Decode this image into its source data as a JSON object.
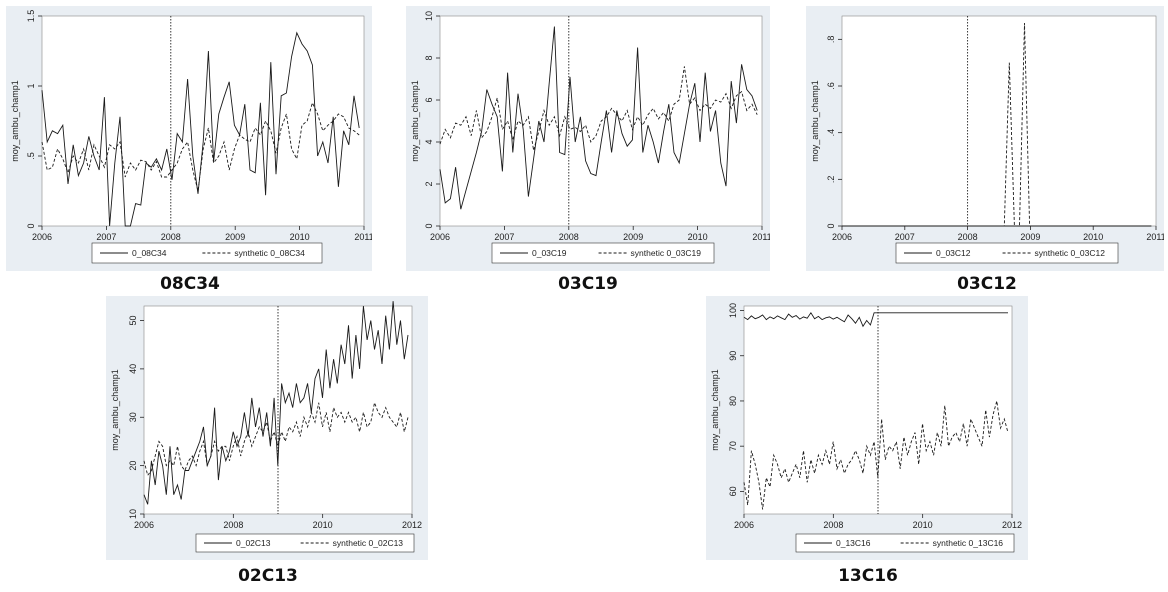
{
  "colors": {
    "panel_bg": "#e9eef3",
    "plot_bg": "#ffffff",
    "line": "#1a1a1a"
  },
  "panels": [
    {
      "caption": "08C34"
    },
    {
      "caption": "03C19"
    },
    {
      "caption": "03C12"
    },
    {
      "caption": "02C13"
    },
    {
      "caption": "13C16"
    }
  ],
  "chart_data": [
    {
      "type": "line",
      "ylabel": "moy_ambu_champ1",
      "xlim": [
        2006,
        2011
      ],
      "ylim": [
        0,
        1.5
      ],
      "xticks": [
        2006,
        2007,
        2008,
        2009,
        2010,
        2011
      ],
      "yticks": [
        0,
        0.5,
        1,
        1.5
      ],
      "ytick_labels": [
        "0",
        ".5",
        "1",
        "1.5"
      ],
      "vline": 2008,
      "series": [
        {
          "name": "0_08C34",
          "style": "solid",
          "values": [
            0.97,
            0.6,
            0.68,
            0.66,
            0.72,
            0.3,
            0.58,
            0.36,
            0.45,
            0.64,
            0.5,
            0.4,
            0.92,
            0.0,
            0.45,
            0.78,
            0.0,
            0.0,
            0.16,
            0.15,
            0.45,
            0.42,
            0.48,
            0.4,
            0.55,
            0.33,
            0.66,
            0.6,
            1.05,
            0.5,
            0.23,
            0.6,
            1.25,
            0.46,
            0.8,
            0.92,
            1.03,
            0.72,
            0.65,
            0.87,
            0.4,
            0.38,
            0.88,
            0.22,
            1.17,
            0.37,
            0.93,
            0.95,
            1.21,
            1.38,
            1.3,
            1.25,
            1.15,
            0.5,
            0.6,
            0.45,
            0.78,
            0.28,
            0.68,
            0.58,
            0.93,
            0.7
          ]
        },
        {
          "name": "synthetic 0_08C34",
          "style": "dashed",
          "values": [
            0.6,
            0.4,
            0.42,
            0.55,
            0.48,
            0.38,
            0.5,
            0.45,
            0.55,
            0.4,
            0.58,
            0.5,
            0.42,
            0.58,
            0.55,
            0.6,
            0.35,
            0.45,
            0.4,
            0.47,
            0.46,
            0.4,
            0.46,
            0.35,
            0.35,
            0.4,
            0.45,
            0.55,
            0.6,
            0.4,
            0.25,
            0.55,
            0.7,
            0.45,
            0.5,
            0.6,
            0.4,
            0.55,
            0.65,
            0.62,
            0.6,
            0.7,
            0.65,
            0.75,
            0.68,
            0.52,
            0.7,
            0.8,
            0.55,
            0.48,
            0.72,
            0.75,
            0.88,
            0.8,
            0.68,
            0.72,
            0.75,
            0.8,
            0.78,
            0.7,
            0.68,
            0.65
          ]
        }
      ],
      "legend": [
        "0_08C34",
        "synthetic 0_08C34"
      ]
    },
    {
      "type": "line",
      "ylabel": "moy_ambu_champ1",
      "xlim": [
        2006,
        2011
      ],
      "ylim": [
        0,
        10
      ],
      "xticks": [
        2006,
        2007,
        2008,
        2009,
        2010,
        2011
      ],
      "yticks": [
        0,
        2,
        4,
        6,
        8,
        10
      ],
      "ytick_labels": [
        "0",
        "2",
        "4",
        "6",
        "8",
        "10"
      ],
      "vline": 2008,
      "series": [
        {
          "name": "0_03C19",
          "style": "solid",
          "values": [
            2.7,
            1.1,
            1.3,
            2.8,
            0.8,
            1.7,
            2.6,
            3.5,
            4.5,
            6.5,
            5.8,
            5.2,
            2.6,
            7.3,
            3.5,
            6.3,
            4.6,
            1.4,
            3.2,
            5.0,
            4.0,
            6.8,
            9.5,
            3.5,
            3.4,
            7.1,
            4.0,
            5.2,
            3.1,
            2.5,
            2.4,
            4.0,
            5.5,
            3.5,
            5.5,
            4.4,
            3.8,
            4.1,
            8.5,
            3.5,
            4.8,
            4.0,
            3.0,
            4.5,
            5.8,
            3.5,
            3.0,
            4.4,
            5.8,
            6.8,
            4.0,
            7.3,
            4.5,
            5.5,
            3.0,
            1.9,
            6.9,
            4.9,
            7.7,
            6.5,
            6.2,
            5.5
          ]
        },
        {
          "name": "synthetic 0_03C19",
          "style": "dashed",
          "values": [
            3.9,
            4.6,
            4.2,
            4.9,
            4.8,
            5.2,
            4.3,
            5.5,
            4.2,
            4.5,
            5.2,
            6.1,
            4.6,
            5.0,
            4.1,
            5.0,
            4.8,
            5.2,
            3.6,
            4.5,
            5.5,
            4.8,
            5.2,
            4.3,
            5.2,
            4.6,
            4.7,
            4.5,
            4.8,
            4.0,
            4.3,
            5.0,
            5.2,
            5.6,
            5.3,
            5.0,
            5.5,
            4.6,
            5.2,
            4.8,
            5.3,
            5.6,
            5.1,
            5.4,
            5.0,
            5.8,
            6.0,
            7.6,
            5.8,
            6.1,
            5.5,
            5.8,
            5.6,
            6.0,
            5.9,
            6.3,
            5.6,
            6.2,
            6.4,
            5.5,
            5.8,
            5.3
          ]
        }
      ],
      "legend": [
        "0_03C19",
        "synthetic 0_03C19"
      ]
    },
    {
      "type": "line",
      "ylabel": "moy_ambu_champ1",
      "xlim": [
        2006,
        2011
      ],
      "ylim": [
        0,
        0.9
      ],
      "xticks": [
        2006,
        2007,
        2008,
        2009,
        2010,
        2011
      ],
      "yticks": [
        0,
        0.2,
        0.4,
        0.6,
        0.8
      ],
      "ytick_labels": [
        "0",
        ".2",
        ".4",
        ".6",
        ".8"
      ],
      "vline": 2008,
      "series": [
        {
          "name": "0_03C12",
          "style": "solid",
          "values": [
            0,
            0,
            0,
            0,
            0,
            0,
            0,
            0,
            0,
            0,
            0,
            0,
            0,
            0,
            0,
            0,
            0,
            0,
            0,
            0,
            0,
            0,
            0,
            0,
            0,
            0,
            0,
            0,
            0,
            0,
            0,
            0,
            0,
            0,
            0,
            0,
            0,
            0,
            0,
            0,
            0,
            0,
            0,
            0,
            0,
            0,
            0,
            0,
            0,
            0,
            0,
            0,
            0,
            0,
            0,
            0,
            0,
            0,
            0,
            0,
            0,
            0
          ]
        },
        {
          "name": "synthetic 0_03C12",
          "style": "dashed",
          "values": [
            0,
            0,
            0,
            0,
            0,
            0,
            0,
            0,
            0,
            0,
            0,
            0,
            0,
            0,
            0,
            0,
            0,
            0,
            0,
            0,
            0,
            0,
            0,
            0,
            0,
            0,
            0,
            0,
            0,
            0,
            0,
            0,
            0,
            0.7,
            0,
            0,
            0.87,
            0,
            0,
            0,
            0,
            0,
            0,
            0,
            0,
            0,
            0,
            0,
            0,
            0,
            0,
            0,
            0,
            0,
            0,
            0,
            0,
            0,
            0,
            0,
            0,
            0
          ]
        }
      ],
      "legend": [
        "0_03C12",
        "synthetic 0_03C12"
      ]
    },
    {
      "type": "line",
      "ylabel": "moy_ambu_champ1",
      "xlim": [
        2006,
        2012
      ],
      "ylim": [
        10,
        53
      ],
      "xticks": [
        2006,
        2008,
        2010,
        2012
      ],
      "yticks": [
        10,
        20,
        30,
        40,
        50
      ],
      "ytick_labels": [
        "10",
        "20",
        "30",
        "40",
        "50"
      ],
      "vline": 2009,
      "series": [
        {
          "name": "0_02C13",
          "style": "solid",
          "values": [
            14,
            12,
            21,
            16,
            23,
            20,
            14,
            24,
            14,
            16,
            13,
            19,
            19,
            21,
            23,
            25,
            28,
            20,
            22,
            32,
            17,
            24,
            21,
            23,
            27,
            24,
            26,
            31,
            26,
            34,
            28,
            32,
            26,
            31,
            24,
            34,
            20,
            37,
            33,
            35,
            32,
            37,
            33,
            34,
            37,
            31,
            38,
            40,
            34,
            44,
            36,
            42,
            37,
            45,
            41,
            49,
            38,
            47,
            40,
            53,
            46,
            50,
            44,
            48,
            41,
            51,
            44,
            54,
            45,
            50,
            42,
            47
          ]
        },
        {
          "name": "synthetic 0_02C13",
          "style": "dashed",
          "values": [
            21,
            18,
            19,
            22,
            25,
            24,
            20,
            21,
            20,
            24,
            20,
            19,
            21,
            22,
            20,
            23,
            25,
            20,
            22,
            25,
            23,
            24,
            24,
            21,
            24,
            26,
            22,
            25,
            27,
            24,
            26,
            28,
            27,
            29,
            25,
            27,
            24,
            27,
            25,
            28,
            27,
            29,
            26,
            30,
            28,
            31,
            29,
            33,
            28,
            31,
            27,
            32,
            30,
            31,
            29,
            31,
            29,
            30,
            27,
            31,
            28,
            29,
            33,
            31,
            30,
            32,
            30,
            29,
            28,
            31,
            27,
            30
          ]
        }
      ],
      "legend": [
        "0_02C13",
        "synthetic 0_02C13"
      ]
    },
    {
      "type": "line",
      "ylabel": "moy_ambu_champ1",
      "xlim": [
        2006,
        2012
      ],
      "ylim": [
        55,
        101
      ],
      "xticks": [
        2006,
        2008,
        2010,
        2012
      ],
      "yticks": [
        60,
        70,
        80,
        90,
        100
      ],
      "ytick_labels": [
        "60",
        "70",
        "80",
        "90",
        "100"
      ],
      "vline": 2009,
      "series": [
        {
          "name": "0_13C16",
          "style": "solid",
          "values": [
            98.5,
            98.0,
            98.8,
            98.2,
            98.5,
            99.0,
            98.0,
            98.6,
            98.2,
            98.8,
            98.4,
            98.0,
            99.2,
            98.5,
            98.9,
            98.1,
            98.6,
            98.3,
            99.5,
            98.2,
            98.7,
            98.0,
            98.4,
            98.6,
            98.1,
            98.5,
            98.0,
            97.5,
            99.0,
            98.2,
            97.2,
            98.5,
            96.5,
            97.8,
            96.8,
            99.5,
            99.5,
            99.5,
            99.5,
            99.5,
            99.5,
            99.5,
            99.5,
            99.5,
            99.5,
            99.5,
            99.5,
            99.5,
            99.5,
            99.5,
            99.5,
            99.5,
            99.5,
            99.5,
            99.5,
            99.5,
            99.5,
            99.5,
            99.5,
            99.5,
            99.5,
            99.5,
            99.5,
            99.5,
            99.5,
            99.5,
            99.5,
            99.5,
            99.5,
            99.5,
            99.5,
            99.5
          ]
        },
        {
          "name": "synthetic 0_13C16",
          "style": "dashed",
          "values": [
            62,
            57,
            69,
            66,
            62,
            56,
            63,
            61,
            68,
            66,
            63,
            65,
            62,
            64,
            66,
            63,
            69,
            62,
            67,
            64,
            68,
            66,
            69,
            66,
            71,
            65,
            67,
            64,
            66,
            67,
            69,
            67,
            64,
            70,
            68,
            71,
            63,
            76,
            67,
            70,
            69,
            71,
            65,
            72,
            68,
            71,
            73,
            66,
            75,
            69,
            71,
            68,
            73,
            70,
            79,
            70,
            72,
            73,
            71,
            75,
            70,
            76,
            74,
            72,
            70,
            78,
            72,
            77,
            80,
            74,
            76,
            73
          ]
        }
      ],
      "legend": [
        "0_13C16",
        "synthetic 0_13C16"
      ]
    }
  ]
}
